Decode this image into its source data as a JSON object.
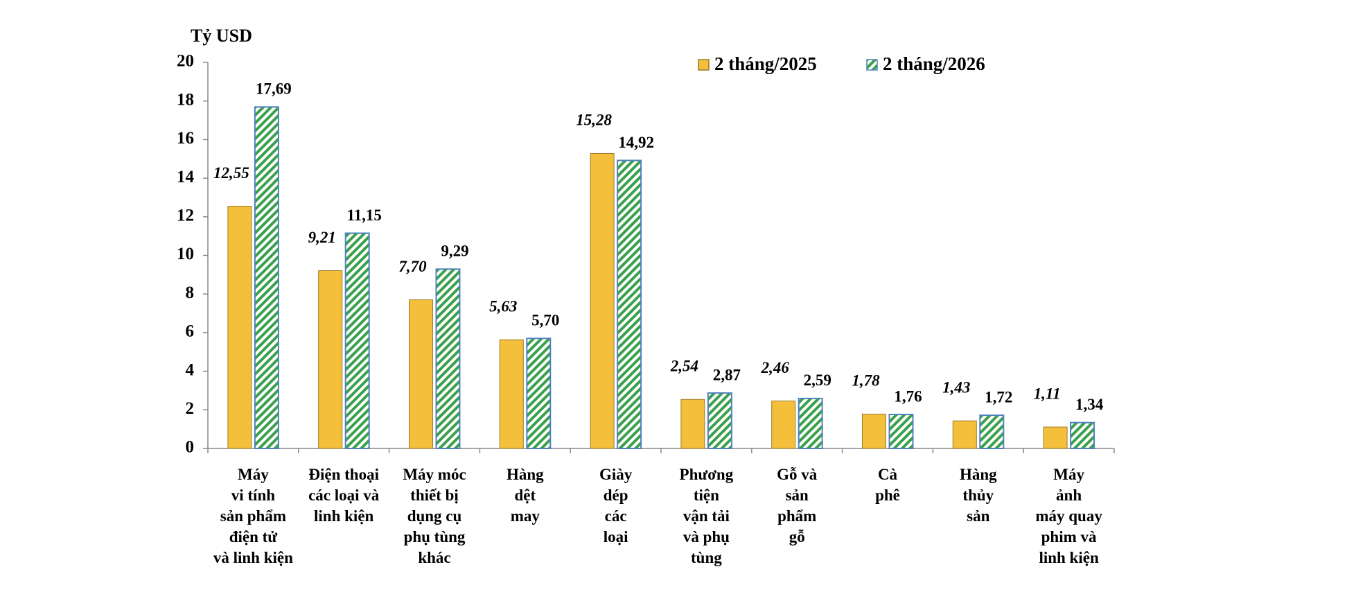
{
  "chart_data": {
    "type": "bar",
    "y_label": "Tỷ USD",
    "categories": [
      "Máy\nvi tính\nsản phẩm\nđiện tử\nvà linh kiện",
      "Điện thoại\ncác loại và\nlinh kiện",
      "Máy móc\nthiết bị\ndụng cụ\nphụ tùng\nkhác",
      "Hàng\ndệt\nmay",
      "Giày\ndép\ncác\nloại",
      "Phương\ntiện\nvận tải\nvà phụ\ntùng",
      "Gỗ và\nsản\nphẩm\ngỗ",
      "Cà\nphê",
      "Hàng\nthủy\nsản",
      "Máy\nảnh\nmáy quay\nphim và\nlinh kiện"
    ],
    "series": [
      {
        "name": "2 tháng/2025",
        "color": "#f4c03c",
        "values": [
          12.55,
          9.21,
          7.7,
          5.63,
          15.28,
          2.54,
          2.46,
          1.78,
          1.43,
          1.11
        ],
        "value_labels": [
          "12,55",
          "9,21",
          "7,70",
          "5,63",
          "15,28",
          "2,54",
          "2,46",
          "1,78",
          "1,43",
          "1,11"
        ]
      },
      {
        "name": "2 tháng/2026",
        "color": "#3aa04a",
        "values": [
          17.69,
          11.15,
          9.29,
          5.7,
          14.92,
          2.87,
          2.59,
          1.76,
          1.72,
          1.34
        ],
        "value_labels": [
          "17,69",
          "11,15",
          "9,29",
          "5,70",
          "14,92",
          "2,87",
          "2,59",
          "1,76",
          "1,72",
          "1,34"
        ]
      }
    ],
    "ylim": [
      0,
      20
    ],
    "yticks": [
      0,
      2,
      4,
      6,
      8,
      10,
      12,
      14,
      16,
      18,
      20
    ],
    "grid": false,
    "legend": "top"
  }
}
